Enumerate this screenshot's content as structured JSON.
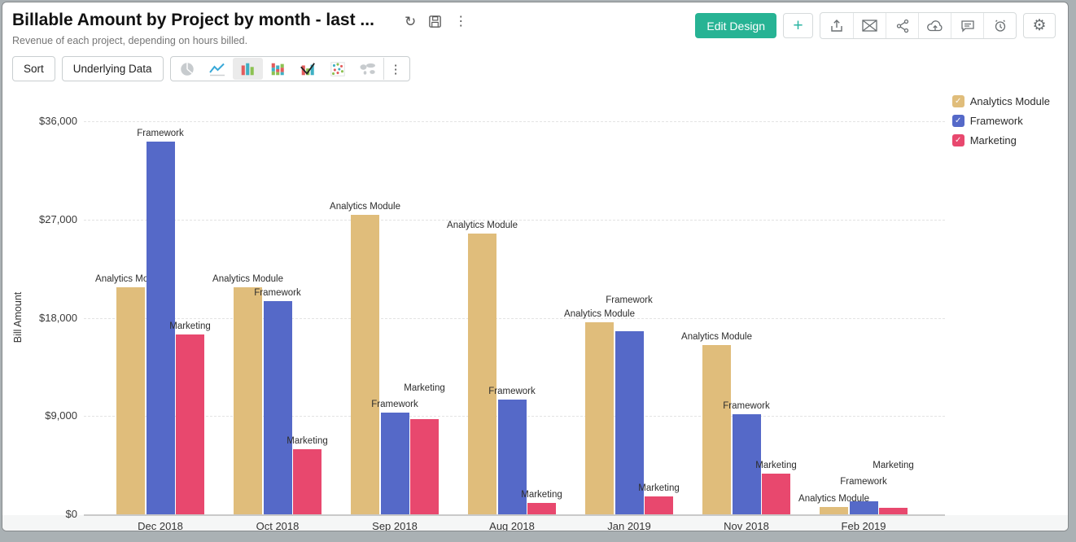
{
  "window": {
    "title": "Billable Amount by Project by month - last ...",
    "subtitle": "Revenue of each project, depending on hours billed."
  },
  "header": {
    "title_icons": [
      "refresh-icon",
      "save-icon",
      "more-vertical-icon"
    ],
    "edit_design_label": "Edit Design",
    "add_label": "+",
    "action_icons": [
      "export-icon",
      "email-icon",
      "share-icon",
      "publish-icon",
      "comment-icon",
      "alert-icon"
    ],
    "settings_icon": "gear-icon",
    "accent_color": "#27B394"
  },
  "toolbar": {
    "sort_label": "Sort",
    "underlying_data_label": "Underlying Data",
    "chart_types": [
      "pie",
      "line",
      "bar",
      "stacked-bar",
      "combo",
      "scatter",
      "map"
    ],
    "selected_chart_type": "bar",
    "more_label": "⋮"
  },
  "chart_data": {
    "type": "bar",
    "title": "",
    "xlabel": "",
    "ylabel": "Bill Amount",
    "categories": [
      "Dec 2018",
      "Oct 2018",
      "Sep 2018",
      "Aug 2018",
      "Jan 2019",
      "Nov 2018",
      "Feb 2019"
    ],
    "series": [
      {
        "name": "Analytics Module",
        "color": "#E0BD7B",
        "values": [
          20800,
          20800,
          27400,
          25700,
          17600,
          15500,
          700
        ]
      },
      {
        "name": "Framework",
        "color": "#5569C8",
        "values": [
          34100,
          19500,
          9300,
          10500,
          16800,
          9200,
          1200
        ]
      },
      {
        "name": "Marketing",
        "color": "#E8486E",
        "values": [
          16500,
          6000,
          8700,
          1050,
          1650,
          3700,
          600
        ]
      }
    ],
    "ylim": [
      0,
      36000
    ],
    "yticks": [
      0,
      9000,
      18000,
      27000,
      36000
    ],
    "ytick_labels": [
      "$0",
      "$9,000",
      "$18,000",
      "$27,000",
      "$36,000"
    ],
    "grid": true,
    "legend_position": "top-right",
    "bar_labels": "series-name"
  }
}
